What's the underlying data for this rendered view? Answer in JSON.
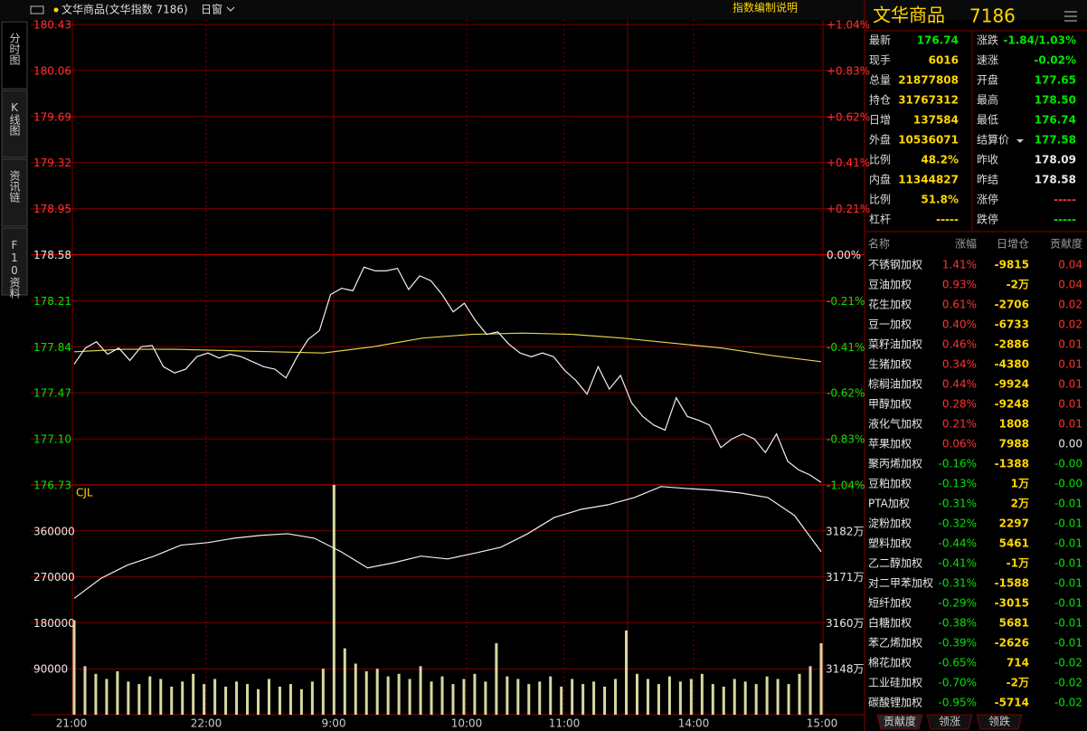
{
  "top_bar": {
    "title": "文华商品(文华指数  7186)",
    "window": "日窗",
    "index_note": "指数编制说明"
  },
  "side_tabs": [
    "分时图",
    "K线图",
    "资讯链",
    "F10资料"
  ],
  "price_chart": {
    "ylim": [
      176.73,
      180.43
    ],
    "yticks": [
      180.43,
      180.06,
      179.69,
      179.32,
      178.95,
      178.58,
      178.21,
      177.84,
      177.47,
      {
        "value": 177.1,
        "label": "177.10"
      },
      176.73
    ],
    "pct_labels": [
      "+1.04%",
      "+0.83%",
      "+0.62%",
      "+0.41%",
      "+0.21%",
      "0.00%",
      "-0.21%",
      "-0.41%",
      "-0.62%",
      "-0.83%",
      "-1.04%"
    ],
    "price": [
      177.7,
      177.83,
      177.88,
      177.78,
      177.83,
      177.73,
      177.84,
      177.85,
      177.68,
      177.63,
      177.66,
      177.76,
      177.79,
      177.75,
      177.78,
      177.76,
      177.72,
      177.68,
      177.66,
      177.59,
      177.76,
      177.9,
      177.97,
      178.26,
      178.31,
      178.29,
      178.48,
      178.45,
      178.45,
      178.47,
      178.3,
      178.41,
      178.37,
      178.26,
      178.12,
      178.19,
      178.05,
      177.94,
      177.96,
      177.86,
      177.79,
      177.76,
      177.79,
      177.76,
      177.65,
      177.57,
      177.46,
      177.68,
      177.5,
      177.61,
      177.39,
      177.28,
      177.21,
      177.17,
      177.43,
      177.28,
      177.25,
      177.21,
      177.03,
      177.1,
      177.14,
      177.1,
      176.99,
      177.14,
      176.92,
      176.85,
      176.81,
      176.75
    ],
    "average": [
      177.8,
      177.82,
      177.82,
      177.81,
      177.8,
      177.79,
      177.84,
      177.91,
      177.94,
      177.95,
      177.94,
      177.91,
      177.87,
      177.83,
      177.77,
      177.72
    ]
  },
  "volume_chart": {
    "label": "CJL",
    "ylim": [
      0,
      450000
    ],
    "yticks": [
      360000,
      270000,
      180000,
      90000
    ],
    "y2lim": [
      3137.2,
      3193.7
    ],
    "y2ticks": [
      {
        "value": 3182.4,
        "label": "3182万"
      },
      {
        "value": 3171.1,
        "label": "3171万"
      },
      {
        "value": 3159.8,
        "label": "3160万"
      },
      {
        "value": 3148.5,
        "label": "3148万"
      }
    ],
    "volume": [
      185000,
      95000,
      80000,
      70000,
      85000,
      65000,
      60000,
      75000,
      70000,
      55000,
      65000,
      80000,
      60000,
      70000,
      55000,
      65000,
      60000,
      50000,
      70000,
      55000,
      60000,
      50000,
      65000,
      90000,
      450000,
      130000,
      100000,
      85000,
      90000,
      75000,
      80000,
      70000,
      95000,
      65000,
      75000,
      60000,
      70000,
      80000,
      65000,
      140000,
      75000,
      70000,
      60000,
      65000,
      75000,
      55000,
      70000,
      60000,
      65000,
      55000,
      70000,
      165000,
      80000,
      70000,
      60000,
      75000,
      65000,
      70000,
      80000,
      60000,
      55000,
      70000,
      65000,
      60000,
      75000,
      70000,
      60000,
      80000,
      95000,
      140000
    ],
    "open_interest": [
      3165.8,
      3170.7,
      3174.0,
      3176.2,
      3178.9,
      3179.5,
      3180.6,
      3181.3,
      3181.7,
      3180.6,
      3177.3,
      3173.3,
      3174.6,
      3176.2,
      3175.5,
      3176.9,
      3178.4,
      3181.7,
      3185.7,
      3187.7,
      3188.8,
      3190.6,
      3193.3,
      3192.8,
      3192.4,
      3191.7,
      3190.6,
      3186.2,
      3177.3
    ]
  },
  "time_labels": [
    "21:00",
    "22:00",
    "9:00",
    "10:00",
    "11:00",
    "14:00",
    "15:00"
  ],
  "quote": {
    "name": "文华商品",
    "code": "7186",
    "rows": [
      [
        "最新",
        "176.74",
        "涨跌",
        "-1.84/1.03%"
      ],
      [
        "现手",
        "6016",
        "速涨",
        "-0.02%"
      ],
      [
        "总量",
        "21877808",
        "开盘",
        "177.65"
      ],
      [
        "持仓",
        "31767312",
        "最高",
        "178.50"
      ],
      [
        "日增",
        "137584",
        "最低",
        "176.74"
      ],
      [
        "外盘",
        "10536071",
        "结算价",
        "177.58"
      ],
      [
        "比例",
        "48.2%",
        "昨收",
        "178.09"
      ],
      [
        "内盘",
        "11344827",
        "昨结",
        "178.58"
      ],
      [
        "比例",
        "51.8%",
        "涨停",
        "-----"
      ],
      [
        "杠杆",
        "-----",
        "跌停",
        "-----"
      ]
    ]
  },
  "constituents": {
    "header": [
      "名称",
      "涨幅",
      "日增仓",
      "贡献度"
    ],
    "rows": [
      [
        "不锈钢加权",
        "1.41%",
        "-9815",
        "0.04"
      ],
      [
        "豆油加权",
        "0.93%",
        "-2万",
        "0.04"
      ],
      [
        "花生加权",
        "0.61%",
        "-2706",
        "0.02"
      ],
      [
        "豆一加权",
        "0.40%",
        "-6733",
        "0.02"
      ],
      [
        "菜籽油加权",
        "0.46%",
        "-2886",
        "0.01"
      ],
      [
        "生猪加权",
        "0.34%",
        "-4380",
        "0.01"
      ],
      [
        "棕榈油加权",
        "0.44%",
        "-9924",
        "0.01"
      ],
      [
        "甲醇加权",
        "0.28%",
        "-9248",
        "0.01"
      ],
      [
        "液化气加权",
        "0.21%",
        "1808",
        "0.01"
      ],
      [
        "苹果加权",
        "0.06%",
        "7988",
        "0.00"
      ],
      [
        "聚丙烯加权",
        "-0.16%",
        "-1388",
        "-0.00"
      ],
      [
        "豆粕加权",
        "-0.13%",
        "1万",
        "-0.00"
      ],
      [
        "PTA加权",
        "-0.31%",
        "2万",
        "-0.01"
      ],
      [
        "淀粉加权",
        "-0.32%",
        "2297",
        "-0.01"
      ],
      [
        "塑料加权",
        "-0.44%",
        "5461",
        "-0.01"
      ],
      [
        "乙二醇加权",
        "-0.41%",
        "-1万",
        "-0.01"
      ],
      [
        "对二甲苯加权",
        "-0.31%",
        "-1588",
        "-0.01"
      ],
      [
        "短纤加权",
        "-0.29%",
        "-3015",
        "-0.01"
      ],
      [
        "白糖加权",
        "-0.38%",
        "5681",
        "-0.01"
      ],
      [
        "苯乙烯加权",
        "-0.39%",
        "-2626",
        "-0.01"
      ],
      [
        "棉花加权",
        "-0.65%",
        "714",
        "-0.02"
      ],
      [
        "工业硅加权",
        "-0.70%",
        "-2万",
        "-0.02"
      ],
      [
        "碳酸锂加权",
        "-0.95%",
        "-5714",
        "-0.02"
      ]
    ]
  },
  "bottom_tabs": [
    "贡献度",
    "领涨",
    "领跌"
  ]
}
